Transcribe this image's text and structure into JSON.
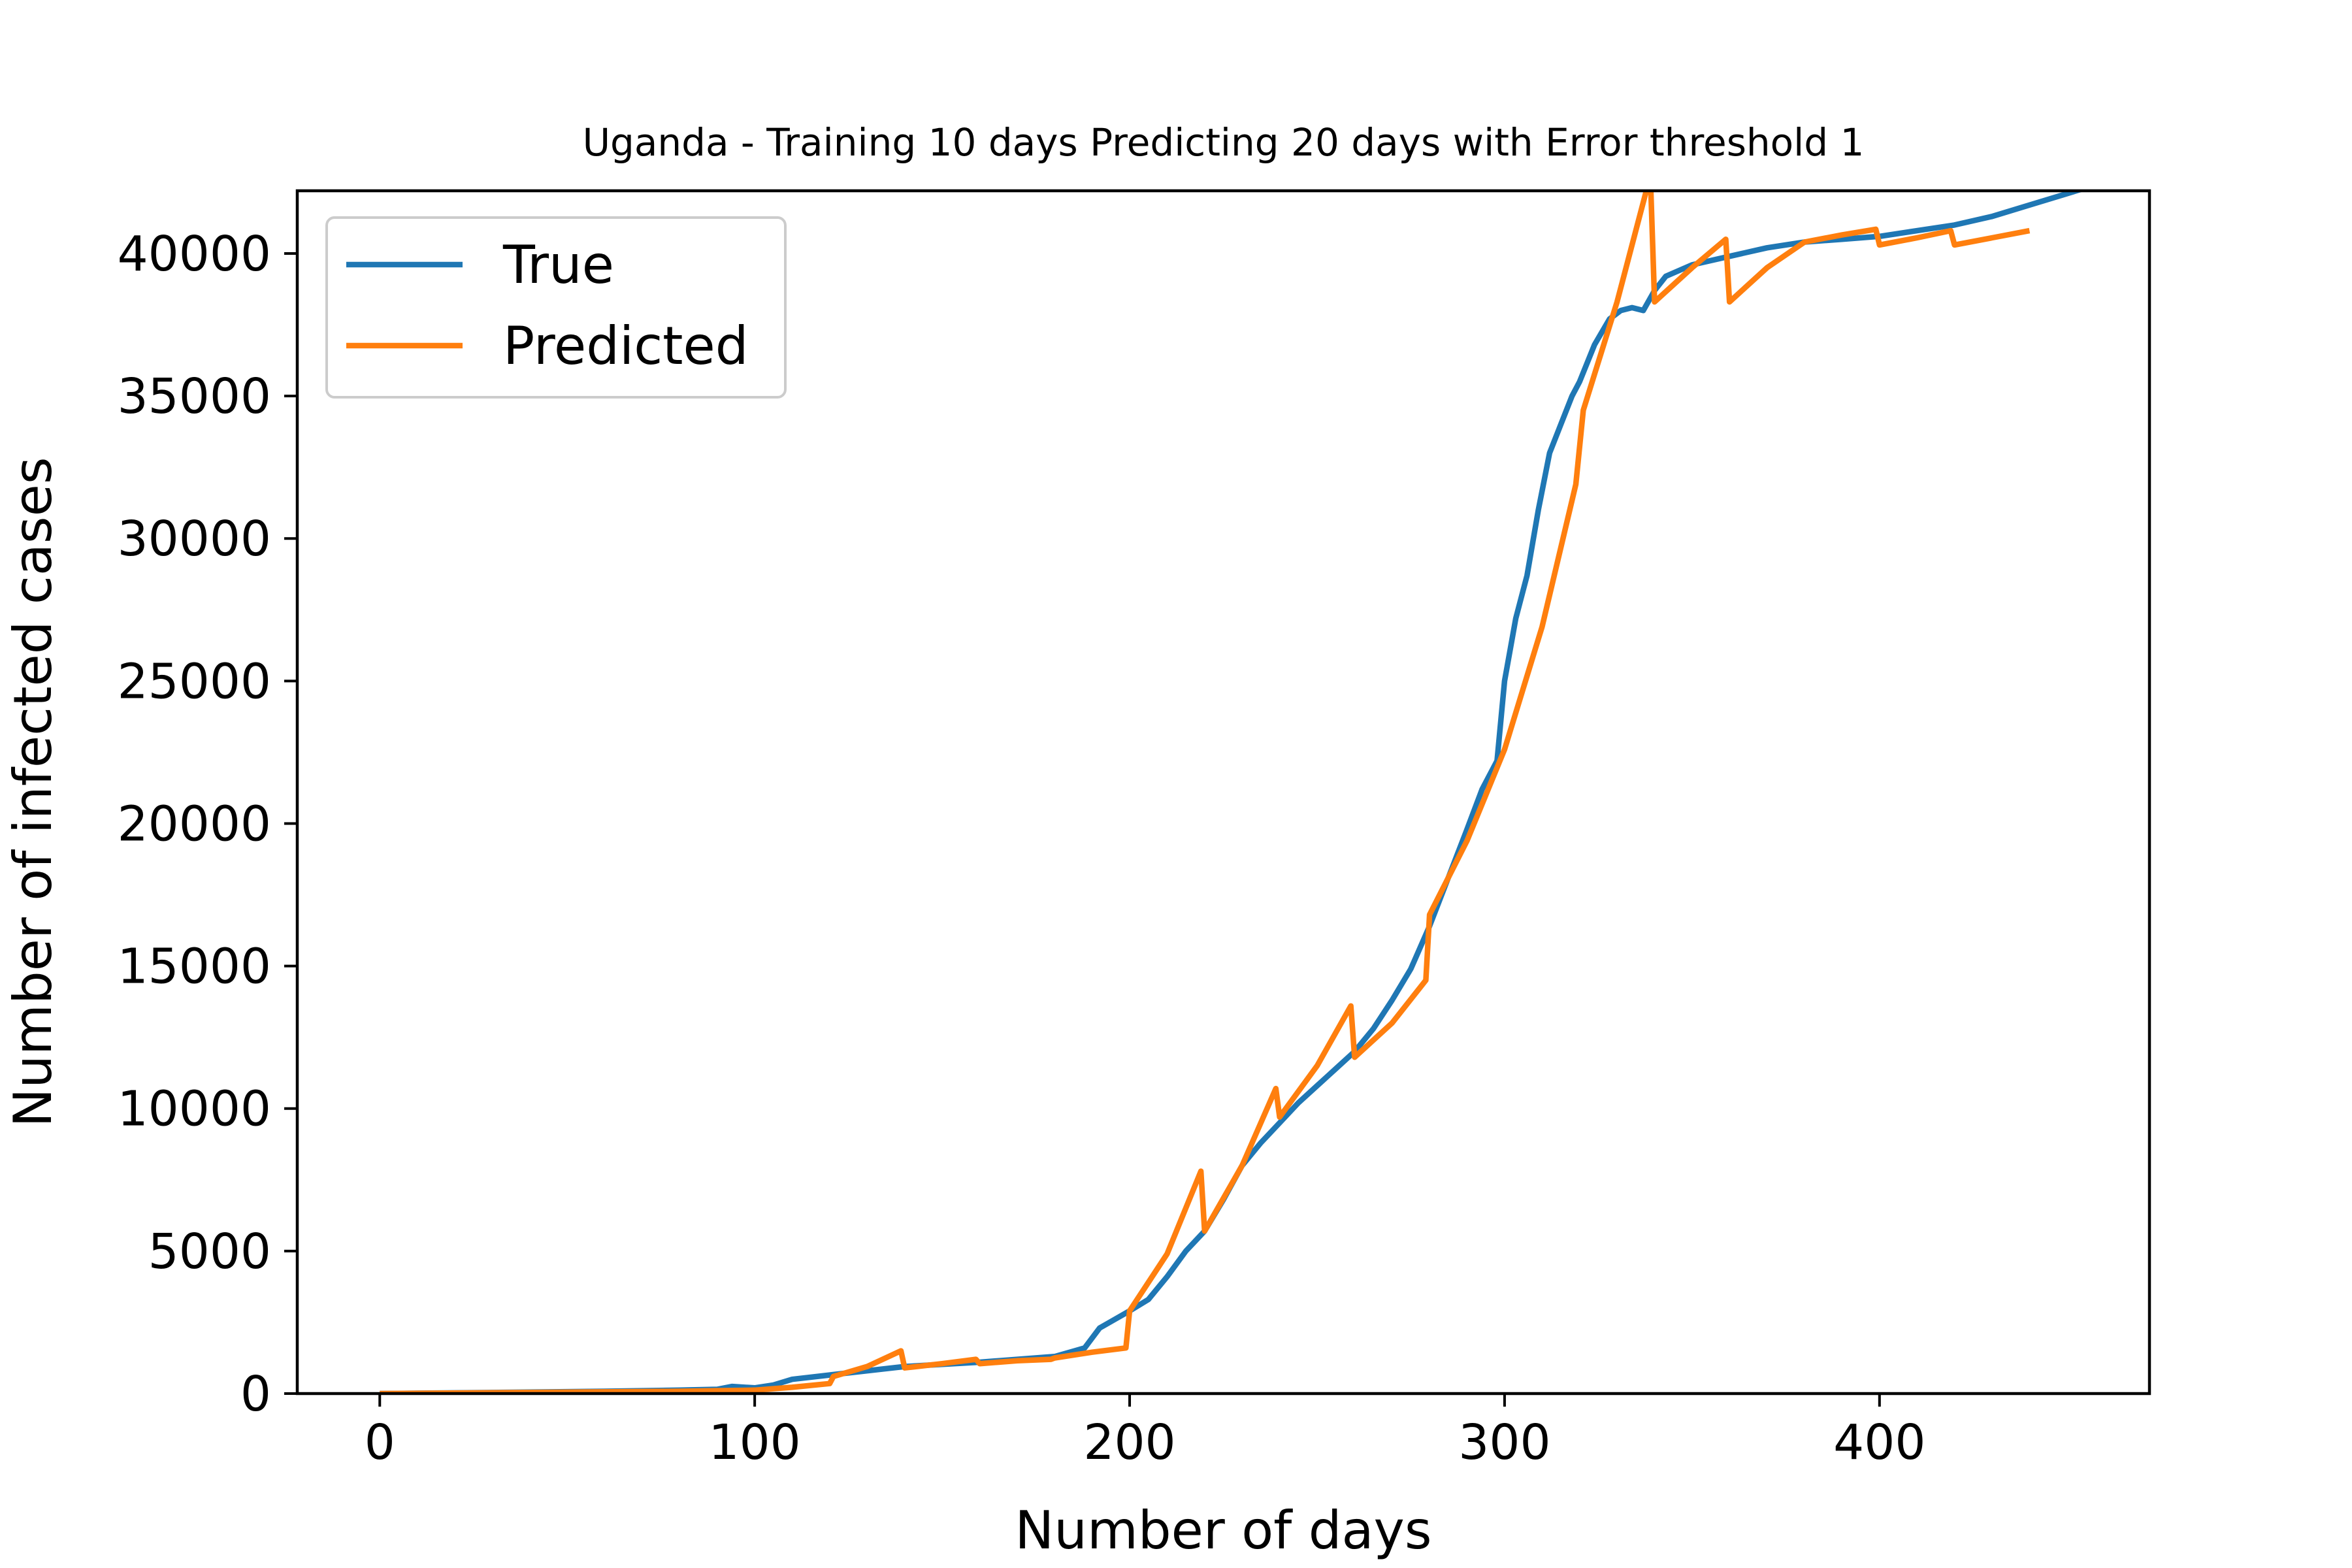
{
  "chart_data": {
    "type": "line",
    "title": "Uganda - Training 10 days Predicting 20 days with Error threshold 1",
    "xlabel": "Number of days",
    "ylabel": "Number of infected cases",
    "xlim": [
      -22,
      472
    ],
    "ylim": [
      0,
      42200
    ],
    "xticks": [
      0,
      100,
      200,
      300,
      400
    ],
    "yticks": [
      0,
      5000,
      10000,
      15000,
      20000,
      25000,
      30000,
      35000,
      40000
    ],
    "xtick_labels": [
      "0",
      "100",
      "200",
      "300",
      "400"
    ],
    "ytick_labels": [
      "0",
      "5000",
      "10000",
      "15000",
      "20000",
      "25000",
      "30000",
      "35000",
      "40000"
    ],
    "legend_position": "upper-left",
    "grid": false,
    "colors": {
      "True": "#1f77b4",
      "Predicted": "#ff7f0e"
    },
    "series": [
      {
        "name": "True",
        "x": [
          0,
          40,
          60,
          80,
          90,
          94,
          100,
          105,
          110,
          120,
          130,
          140,
          160,
          180,
          188,
          192,
          196,
          200,
          205,
          210,
          215,
          220,
          225,
          230,
          235,
          240,
          245,
          250,
          255,
          260,
          265,
          270,
          275,
          280,
          285,
          290,
          294,
          298,
          300,
          303,
          306,
          309,
          312,
          315,
          318,
          320,
          324,
          328,
          331,
          334,
          337,
          340,
          343,
          350,
          360,
          370,
          380,
          390,
          400,
          410,
          420,
          430,
          440,
          450,
          455
        ],
        "y": [
          0,
          50,
          80,
          120,
          150,
          250,
          200,
          300,
          500,
          650,
          800,
          950,
          1100,
          1300,
          1600,
          2300,
          2600,
          2900,
          3300,
          4100,
          5000,
          5700,
          6800,
          8000,
          8800,
          9500,
          10200,
          10800,
          11400,
          12000,
          12800,
          13800,
          14900,
          16400,
          18100,
          19800,
          21200,
          22200,
          25000,
          27200,
          28700,
          31000,
          33000,
          34000,
          35000,
          35500,
          36800,
          37700,
          38000,
          38100,
          38000,
          38700,
          39200,
          39600,
          39900,
          40200,
          40400,
          40500,
          40600,
          40800,
          41000,
          41300,
          41700,
          42100,
          42300
        ]
      },
      {
        "name": "Predicted",
        "x": [
          0,
          60,
          80,
          90,
          100,
          110,
          120,
          121,
          130,
          139,
          140,
          150,
          159,
          160,
          170,
          179,
          180,
          190,
          199,
          200,
          210,
          219,
          220,
          230,
          239,
          240,
          250,
          259,
          260,
          270,
          279,
          280,
          290,
          300,
          310,
          319,
          321,
          330,
          338,
          339,
          340,
          350,
          359,
          360,
          370,
          380,
          390,
          399,
          400,
          410,
          419,
          420,
          430,
          440
        ],
        "y": [
          0,
          60,
          80,
          100,
          120,
          220,
          350,
          600,
          950,
          1500,
          900,
          1050,
          1200,
          1050,
          1150,
          1200,
          1250,
          1450,
          1600,
          2900,
          4900,
          7800,
          5700,
          8000,
          10700,
          9700,
          11500,
          13600,
          11800,
          13000,
          14500,
          16800,
          19400,
          22600,
          26900,
          31900,
          34500,
          38300,
          42300,
          42300,
          38300,
          39500,
          40500,
          38300,
          39500,
          40400,
          40650,
          40850,
          40300,
          40550,
          40800,
          40300,
          40550,
          40800
        ]
      }
    ]
  }
}
